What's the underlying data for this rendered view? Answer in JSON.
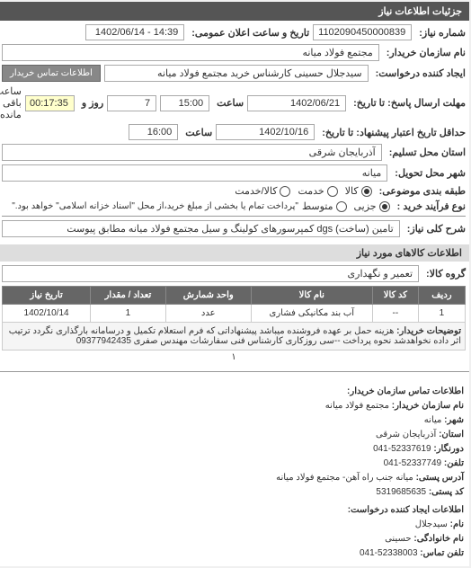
{
  "header": "جزئیات اطلاعات نیاز",
  "req": {
    "number_label": "شماره نیاز:",
    "number": "1102090450000839",
    "announce_label": "تاریخ و ساعت اعلان عمومی:",
    "announce": "14:39 - 1402/06/14",
    "buyer_label": "نام سازمان خریدار:",
    "buyer": "مجتمع فولاد میانه",
    "creator_label": "ایجاد کننده درخواست:",
    "creator": "سیدجلال حسینی کارشناس خرید مجتمع فولاد میانه",
    "contact_btn": "اطلاعات تماس خریدار",
    "deadline_send_label": "مهلت ارسال پاسخ: تا تاریخ:",
    "deadline_send_date": "1402/06/21",
    "time_label": "ساعت",
    "deadline_send_time": "15:00",
    "day_label": "روز و",
    "days_left": "7",
    "time_left": "00:17:35",
    "time_left_suffix": "ساعت باقی مانده",
    "validity_label": "حداقل تاریخ اعتبار پیشنهاد: تا تاریخ:",
    "validity_date": "1402/10/16",
    "validity_time": "16:00",
    "province_label": "استان محل تسلیم:",
    "province": "آذربایجان شرقی",
    "city_label": "شهر محل تحویل:",
    "city": "میانه",
    "ship_label": "طبقه بندی موضوعی:",
    "ship1": "کالا",
    "ship2": "خدمت",
    "ship3": "کالا/خدمت",
    "scale_label": "نوع فرآیند خرید :",
    "scale1": "جزیی",
    "scale2": "متوسط",
    "payment_text": "\"پرداخت تمام یا بخشی از مبلغ خرید،از محل \"اسناد خزانه اسلامی\" خواهد بود.\"",
    "subject_label": "شرح کلی نیاز:",
    "subject": "تامین (ساخت) dgs کمپرسورهای کولینگ و سیل مجتمع فولاد میانه مطابق پیوست"
  },
  "goods_header": "اطلاعات کالاهای مورد نیاز",
  "group_label": "گروه کالا:",
  "group": "تعمیر و نگهداری",
  "table": {
    "cols": [
      "ردیف",
      "کد کالا",
      "نام کالا",
      "واحد شمارش",
      "تعداد / مقدار",
      "تاریخ نیاز"
    ],
    "row": [
      "1",
      "--",
      "آب بند مکانیکی فشاری",
      "عدد",
      "1",
      "1402/10/14"
    ],
    "note_label": "توضیحات خریدار:",
    "note": "هزینه حمل بر عهده فروشنده میباشد پیشنهاداتی که فرم استعلام تکمیل و درسامانه بارگذاری نگردد ترتیب اثر داده نخواهدشد نحوه پرداخت --سی روزکاری کارشناس فنی سفارشات مهندس صفری 09377942435"
  },
  "contact": {
    "title1": "اطلاعات تماس سازمان خریدار:",
    "org_label": "نام سازمان خریدار:",
    "org": "مجتمع فولاد میانه",
    "city_label": "شهر:",
    "city": "میانه",
    "prov_label": "استان:",
    "prov": "آذربایجان شرقی",
    "fax_label": "دورنگار:",
    "fax": "52337619-041",
    "tel_label": "تلفن:",
    "tel": "52337749-041",
    "addr_label": "آدرس پستی:",
    "addr": "میانه جنب راه آهن- مجتمع فولاد میانه",
    "post_label": "کد پستی:",
    "post": "5319685635",
    "title2": "اطلاعات ایجاد کننده درخواست:",
    "name_label": "نام:",
    "name": "سیدجلال",
    "family_label": "نام خانوادگی:",
    "family": "حسینی",
    "tel2_label": "تلفن تماس:",
    "tel2": "52338003-041"
  }
}
